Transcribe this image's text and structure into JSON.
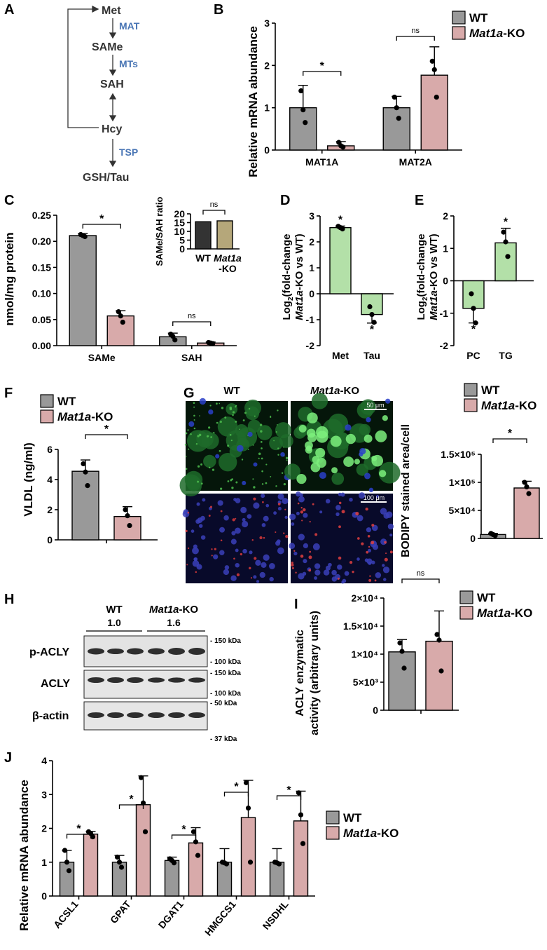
{
  "colors": {
    "wt": "#999999",
    "ko": "#d8aaaa",
    "green": "#b3e0a8",
    "wt_dark": "#333333",
    "ko_tan": "#b5a77a",
    "pathway_blue": "#4a76b5"
  },
  "legend": {
    "wt": "WT",
    "ko_italic": "Mat1a",
    "ko_suffix": "-KO"
  },
  "panel_labels": {
    "A": "A",
    "B": "B",
    "C": "C",
    "D": "D",
    "E": "E",
    "F": "F",
    "G": "G",
    "H": "H",
    "I": "I",
    "J": "J"
  },
  "pathway": {
    "nodes": [
      "Met",
      "SAMe",
      "SAH",
      "Hcy",
      "GSH/Tau"
    ],
    "enzymes": [
      "MAT",
      "MTs",
      "TSP"
    ]
  },
  "stats": {
    "star": "*",
    "ns": "ns"
  },
  "microscopy": {
    "scale_top": "50 μm",
    "scale_bottom": "100 μm"
  },
  "western": {
    "lanes_header": [
      "WT",
      "Mat1a-KO"
    ],
    "ratios": [
      "1.0",
      "1.6"
    ],
    "rows": [
      "p-ACLY",
      "ACLY",
      "β-actin"
    ],
    "markers": [
      "- 150 kDa",
      "- 100 kDa",
      "- 150 kDa",
      "- 100 kDa",
      "- 50 kDa",
      "- 37 kDa"
    ]
  },
  "chart_data": [
    {
      "panel": "B",
      "type": "bar",
      "ylabel": "Relative mRNA abundance",
      "categories": [
        "MAT1A",
        "MAT2A"
      ],
      "ylim": [
        0,
        3
      ],
      "yticks": [
        "0",
        "1",
        "2",
        "3"
      ],
      "series": [
        {
          "name": "WT",
          "values": [
            1.0,
            1.0
          ],
          "err": [
            0.53,
            0.27
          ],
          "points": [
            [
              1.4,
              0.95,
              0.65
            ],
            [
              1.25,
              1.0,
              0.75
            ]
          ]
        },
        {
          "name": "Mat1a-KO",
          "values": [
            0.1,
            1.77
          ],
          "err": [
            0.1,
            0.67
          ],
          "points": [
            [
              0.18,
              0.1,
              0.07
            ],
            [
              2.1,
              1.9,
              1.25
            ]
          ]
        }
      ],
      "sig": [
        "*",
        "ns"
      ]
    },
    {
      "panel": "C",
      "type": "bar",
      "ylabel": "nmol/mg protein",
      "categories": [
        "SAMe",
        "SAH"
      ],
      "ylim": [
        0,
        0.25
      ],
      "yticks": [
        "0.00",
        "0.05",
        "0.10",
        "0.15",
        "0.20",
        "0.25"
      ],
      "series": [
        {
          "name": "WT",
          "values": [
            0.211,
            0.017
          ],
          "err": [
            0.004,
            0.007
          ],
          "points": [
            [
              0.213,
              0.211,
              0.209
            ],
            [
              0.022,
              0.018,
              0.011
            ]
          ]
        },
        {
          "name": "Mat1a-KO",
          "values": [
            0.057,
            0.005
          ],
          "err": [
            0.01,
            0.002
          ],
          "points": [
            [
              0.065,
              0.057,
              0.045
            ],
            [
              0.006,
              0.005,
              0.004
            ]
          ]
        }
      ],
      "sig": [
        "*",
        "ns"
      ]
    },
    {
      "panel": "C-inset",
      "type": "bar",
      "ylabel": "SAMe/SAH ratio",
      "categories": [
        "WT",
        "Mat1a-KO"
      ],
      "ylim": [
        0,
        20
      ],
      "yticks": [
        "0",
        "5",
        "10",
        "15",
        "20"
      ],
      "values": [
        15.5,
        16
      ],
      "sig": "ns"
    },
    {
      "panel": "D",
      "type": "bar",
      "ylabel": "Log2(fold-change Mat1a-KO vs WT)",
      "categories": [
        "Met",
        "Tau"
      ],
      "ylim": [
        -2,
        3
      ],
      "yticks": [
        "-2",
        "-1",
        "0",
        "1",
        "2",
        "3"
      ],
      "values": [
        2.55,
        -0.8
      ],
      "err": [
        0.06,
        0.33
      ],
      "points": [
        [
          2.6,
          2.55,
          2.5
        ],
        [
          -0.5,
          -0.8,
          -1.1
        ]
      ],
      "sig": [
        "*",
        "*"
      ]
    },
    {
      "panel": "E",
      "type": "bar",
      "ylabel": "Log2(fold-change Mat1a-KO vs WT)",
      "categories": [
        "PC",
        "TG"
      ],
      "ylim": [
        -2,
        2
      ],
      "yticks": [
        "-2",
        "-1",
        "0",
        "1",
        "2"
      ],
      "values": [
        -0.85,
        1.17
      ],
      "err": [
        0.45,
        0.45
      ],
      "points": [
        [
          -0.4,
          -0.85,
          -1.3
        ],
        [
          1.5,
          1.2,
          0.75
        ]
      ],
      "sig": [
        "*",
        "*"
      ]
    },
    {
      "panel": "F",
      "type": "bar",
      "ylabel": "VLDL (ng/ml)",
      "categories": [
        "WT",
        "Mat1a-KO"
      ],
      "ylim": [
        0,
        6
      ],
      "yticks": [
        "0",
        "2",
        "4",
        "6"
      ],
      "values": [
        4.55,
        1.55
      ],
      "err": [
        0.75,
        0.65
      ],
      "points": [
        [
          5.05,
          4.5,
          3.6
        ],
        [
          2.0,
          1.6,
          0.95
        ]
      ],
      "sig": "*"
    },
    {
      "panel": "G",
      "type": "bar",
      "ylabel": "BODIPY stained area/cell",
      "categories": [
        "WT",
        "Mat1a-KO"
      ],
      "ylim": [
        0,
        150000
      ],
      "yticks": [
        "0",
        "5×10⁴",
        "1×10⁵",
        "1.5×10⁵"
      ],
      "values": [
        7000,
        90000
      ],
      "err": [
        2000,
        12000
      ],
      "points": [
        [
          9000,
          7000,
          5000
        ],
        [
          100000,
          92000,
          80000
        ]
      ],
      "sig": "*"
    },
    {
      "panel": "I",
      "type": "bar",
      "ylabel": "ACLY enzymatic activity (arbitrary units)",
      "categories": [
        "WT",
        "Mat1a-KO"
      ],
      "ylim": [
        0,
        20000
      ],
      "yticks": [
        "0",
        "5×10³",
        "1×10⁴",
        "1.5×10⁴",
        "2×10⁴"
      ],
      "values": [
        10400,
        12300
      ],
      "err": [
        2200,
        5400
      ],
      "points": [
        [
          12000,
          10500,
          7500
        ],
        [
          13500,
          12500,
          7000
        ]
      ],
      "sig": "ns"
    },
    {
      "panel": "J",
      "type": "bar",
      "ylabel": "Relative mRNA abundance",
      "categories": [
        "ACSL1",
        "GPAT",
        "DGAT1",
        "HMGCS1",
        "NSDHL"
      ],
      "ylim": [
        0,
        4
      ],
      "yticks": [
        "0",
        "1",
        "2",
        "3",
        "4"
      ],
      "series": [
        {
          "name": "WT",
          "values": [
            1.0,
            1.0,
            1.05,
            1.0,
            1.0
          ],
          "err": [
            0.35,
            0.2,
            0.1,
            0.4,
            0.4
          ],
          "points": [
            [
              1.35,
              1.0,
              0.75
            ],
            [
              1.15,
              1.0,
              0.85
            ],
            [
              1.1,
              1.05,
              0.98
            ],
            [
              1.0,
              0.98,
              0.95
            ],
            [
              1.0,
              0.98,
              0.95
            ]
          ]
        },
        {
          "name": "Mat1a-KO",
          "values": [
            1.83,
            2.7,
            1.57,
            2.32,
            2.22
          ],
          "err": [
            0.08,
            0.85,
            0.45,
            1.1,
            0.88
          ],
          "points": [
            [
              1.9,
              1.85,
              1.75
            ],
            [
              3.5,
              2.75,
              1.9
            ],
            [
              1.9,
              1.6,
              1.2
            ],
            [
              3.35,
              2.6,
              1.0
            ],
            [
              3.05,
              2.4,
              1.55
            ]
          ]
        }
      ],
      "sig": [
        "*",
        "*",
        "*",
        "*",
        "*"
      ]
    }
  ]
}
